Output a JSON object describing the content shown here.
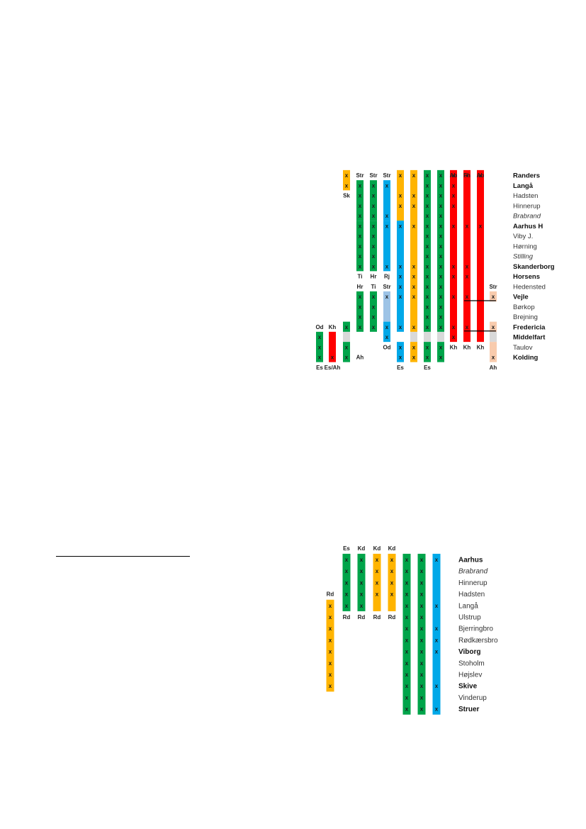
{
  "colors": {
    "green": "#00A44A",
    "yellow": "#FFB400",
    "blue": "#00A8E8",
    "lightblue": "#9DC3E6",
    "red": "#FF0000",
    "peach": "#F8CBAD",
    "gray": "#D9D9D9"
  },
  "diagram1": {
    "stations": [
      {
        "name": "Randers",
        "style": "bold"
      },
      {
        "name": "Langå",
        "style": "bold"
      },
      {
        "name": "Hadsten",
        "style": "normal"
      },
      {
        "name": "Hinnerup",
        "style": "normal"
      },
      {
        "name": "Brabrand",
        "style": "italic"
      },
      {
        "name": "Aarhus H",
        "style": "bold"
      },
      {
        "name": "Viby J.",
        "style": "normal"
      },
      {
        "name": "Hørning",
        "style": "normal"
      },
      {
        "name": "Stilling",
        "style": "italic"
      },
      {
        "name": "Skanderborg",
        "style": "bold"
      },
      {
        "name": "Horsens",
        "style": "bold"
      },
      {
        "name": "Hedensted",
        "style": "normal"
      },
      {
        "name": "Vejle",
        "style": "bold"
      },
      {
        "name": "Børkop",
        "style": "normal"
      },
      {
        "name": "Brejning",
        "style": "normal"
      },
      {
        "name": "Fredericia",
        "style": "bold"
      },
      {
        "name": "Middelfart",
        "style": "bold"
      },
      {
        "name": "Taulov",
        "style": "normal"
      },
      {
        "name": "Kolding",
        "style": "bold"
      }
    ],
    "labels": [
      {
        "text": "Sk",
        "col": 2,
        "row": 2
      },
      {
        "text": "Str",
        "col": 3,
        "row": 0
      },
      {
        "text": "Str",
        "col": 4,
        "row": 0
      },
      {
        "text": "Str",
        "col": 5,
        "row": 0
      },
      {
        "text": "Ab",
        "col": 10,
        "row": 0
      },
      {
        "text": "Fh",
        "col": 11,
        "row": 0
      },
      {
        "text": "Ab",
        "col": 12,
        "row": 0
      },
      {
        "text": "Ti",
        "col": 3,
        "row": 10
      },
      {
        "text": "Hr",
        "col": 4,
        "row": 10
      },
      {
        "text": "Rj",
        "col": 5,
        "row": 10
      },
      {
        "text": "Hr",
        "col": 3,
        "row": 11
      },
      {
        "text": "Ti",
        "col": 4,
        "row": 11
      },
      {
        "text": "Str",
        "col": 5,
        "row": 11
      },
      {
        "text": "Str",
        "col": 13,
        "row": 11
      },
      {
        "text": "Od",
        "col": 0,
        "row": 15
      },
      {
        "text": "Kh",
        "col": 1,
        "row": 15
      },
      {
        "text": "Od",
        "col": 5,
        "row": 17
      },
      {
        "text": "Kh",
        "col": 10,
        "row": 17
      },
      {
        "text": "Kh",
        "col": 11,
        "row": 17
      },
      {
        "text": "Kh",
        "col": 12,
        "row": 17
      },
      {
        "text": "Ah",
        "col": 3,
        "row": 18
      },
      {
        "text": "Es",
        "col": 0,
        "row": 19
      },
      {
        "text": "Es/Ah",
        "col": 1,
        "row": 19
      },
      {
        "text": "Es",
        "col": 6,
        "row": 19
      },
      {
        "text": "Es",
        "col": 8,
        "row": 19
      },
      {
        "text": "Ah",
        "col": 13,
        "row": 19
      }
    ],
    "bars": [
      {
        "col": 2,
        "from": 0,
        "to": 1,
        "color": "yellow",
        "marks": [
          0,
          1
        ]
      },
      {
        "col": 3,
        "from": 1,
        "to": 4,
        "color": "green",
        "marks": [
          1,
          2,
          3,
          4
        ]
      },
      {
        "col": 3,
        "from": 5,
        "to": 9,
        "color": "green",
        "marks": [
          5,
          6,
          7,
          8,
          9
        ]
      },
      {
        "col": 4,
        "from": 1,
        "to": 4,
        "color": "green",
        "marks": [
          1,
          2,
          3,
          4
        ]
      },
      {
        "col": 4,
        "from": 5,
        "to": 9,
        "color": "green",
        "marks": [
          5,
          6,
          7,
          8,
          9
        ]
      },
      {
        "col": 5,
        "from": 1,
        "to": 4,
        "color": "blue",
        "marks": [
          1,
          4
        ]
      },
      {
        "col": 5,
        "from": 5,
        "to": 9,
        "color": "blue",
        "marks": [
          5,
          9
        ]
      },
      {
        "col": 6,
        "from": 0,
        "to": 4,
        "color": "yellow",
        "marks": [
          0,
          2,
          3
        ]
      },
      {
        "col": 6,
        "from": 5,
        "to": 15,
        "color": "blue",
        "marks": [
          5,
          9,
          10,
          11,
          12,
          15
        ]
      },
      {
        "col": 6,
        "from": 17,
        "to": 18,
        "color": "blue",
        "marks": [
          17,
          18
        ]
      },
      {
        "col": 7,
        "from": 0,
        "to": 15,
        "color": "yellow",
        "marks": [
          0,
          2,
          3,
          5,
          9,
          10,
          11,
          12,
          15
        ]
      },
      {
        "col": 7,
        "from": 17,
        "to": 18,
        "color": "yellow",
        "marks": [
          17,
          18
        ]
      },
      {
        "col": 8,
        "from": 0,
        "to": 15,
        "color": "green",
        "marks": [
          0,
          1,
          2,
          3,
          4,
          5,
          6,
          7,
          8,
          9,
          10,
          11,
          12,
          13,
          14,
          15
        ]
      },
      {
        "col": 8,
        "from": 17,
        "to": 18,
        "color": "green",
        "marks": [
          17,
          18
        ]
      },
      {
        "col": 9,
        "from": 0,
        "to": 15,
        "color": "green",
        "marks": [
          0,
          1,
          2,
          3,
          4,
          5,
          6,
          7,
          8,
          9,
          10,
          11,
          12,
          13,
          14,
          15
        ]
      },
      {
        "col": 9,
        "from": 17,
        "to": 18,
        "color": "green",
        "marks": [
          17,
          18
        ]
      },
      {
        "col": 10,
        "from": 0,
        "to": 16,
        "color": "red",
        "marks": [
          0,
          1,
          2,
          3,
          5,
          9,
          10,
          12,
          15,
          16
        ]
      },
      {
        "col": 11,
        "from": 0,
        "to": 16,
        "color": "red",
        "marks": [
          0,
          5,
          9,
          10,
          12,
          15
        ]
      },
      {
        "col": 12,
        "from": 0,
        "to": 16,
        "color": "red",
        "marks": [
          0,
          5
        ]
      },
      {
        "col": 3,
        "from": 12,
        "to": 15,
        "color": "green",
        "marks": [
          12,
          13,
          14,
          15
        ]
      },
      {
        "col": 4,
        "from": 12,
        "to": 15,
        "color": "green",
        "marks": [
          12,
          13,
          14,
          15
        ]
      },
      {
        "col": 5,
        "from": 12,
        "to": 14,
        "color": "lightblue",
        "marks": [
          12
        ]
      },
      {
        "col": 5,
        "from": 15,
        "to": 16,
        "color": "blue",
        "marks": [
          15,
          16
        ]
      },
      {
        "col": 13,
        "from": 12,
        "to": 12,
        "color": "peach",
        "marks": [
          12
        ]
      },
      {
        "col": 13,
        "from": 15,
        "to": 15,
        "color": "peach",
        "marks": [
          15
        ]
      },
      {
        "col": 13,
        "from": 17,
        "to": 18,
        "color": "peach",
        "marks": [
          18
        ]
      },
      {
        "col": 0,
        "from": 16,
        "to": 18,
        "color": "green",
        "marks": [
          16,
          17,
          18
        ]
      },
      {
        "col": 1,
        "from": 16,
        "to": 18,
        "color": "red",
        "marks": [
          18
        ]
      },
      {
        "col": 2,
        "from": 15,
        "to": 15,
        "color": "green",
        "marks": [
          15
        ]
      },
      {
        "col": 2,
        "from": 17,
        "to": 18,
        "color": "green",
        "marks": [
          17,
          18
        ]
      }
    ],
    "gaps": [
      {
        "col": 2,
        "from": 16,
        "to": 16
      },
      {
        "col": 7,
        "from": 16,
        "to": 16
      },
      {
        "col": 8,
        "from": 16,
        "to": 16
      },
      {
        "col": 9,
        "from": 16,
        "to": 16
      },
      {
        "col": 13,
        "from": 16,
        "to": 16
      }
    ]
  },
  "diagram2": {
    "stations": [
      {
        "name": "Aarhus",
        "style": "bold"
      },
      {
        "name": "Brabrand",
        "style": "italic"
      },
      {
        "name": "Hinnerup",
        "style": "normal"
      },
      {
        "name": "Hadsten",
        "style": "normal"
      },
      {
        "name": "Langå",
        "style": "normal"
      },
      {
        "name": "Ulstrup",
        "style": "normal"
      },
      {
        "name": "Bjerringbro",
        "style": "normal"
      },
      {
        "name": "Rødkærsbro",
        "style": "normal"
      },
      {
        "name": "Viborg",
        "style": "bold"
      },
      {
        "name": "Stoholm",
        "style": "normal"
      },
      {
        "name": "Højslev",
        "style": "normal"
      },
      {
        "name": "Skive",
        "style": "bold"
      },
      {
        "name": "Vinderup",
        "style": "normal"
      },
      {
        "name": "Struer",
        "style": "bold"
      }
    ],
    "labels": [
      {
        "text": "Es",
        "col": 1,
        "row": -1
      },
      {
        "text": "Kd",
        "col": 2,
        "row": -1
      },
      {
        "text": "Kd",
        "col": 3,
        "row": -1
      },
      {
        "text": "Kd",
        "col": 4,
        "row": -1
      },
      {
        "text": "Rd",
        "col": 0,
        "row": 3
      },
      {
        "text": "Rd",
        "col": 1,
        "row": 5
      },
      {
        "text": "Rd",
        "col": 2,
        "row": 5
      },
      {
        "text": "Rd",
        "col": 3,
        "row": 5
      },
      {
        "text": "Rd",
        "col": 4,
        "row": 5
      }
    ],
    "bars": [
      {
        "col": 0,
        "from": 4,
        "to": 11,
        "color": "yellow",
        "marks": [
          4,
          5,
          6,
          7,
          8,
          9,
          10,
          11
        ]
      },
      {
        "col": 1,
        "from": 0,
        "to": 4,
        "color": "green",
        "marks": [
          0,
          1,
          2,
          3,
          4
        ]
      },
      {
        "col": 2,
        "from": 0,
        "to": 4,
        "color": "green",
        "marks": [
          0,
          1,
          2,
          3,
          4
        ]
      },
      {
        "col": 3,
        "from": 0,
        "to": 4,
        "color": "yellow",
        "marks": [
          0,
          1,
          2,
          3
        ]
      },
      {
        "col": 4,
        "from": 0,
        "to": 4,
        "color": "yellow",
        "marks": [
          0,
          1,
          2,
          3
        ]
      },
      {
        "col": 5,
        "from": 0,
        "to": 13,
        "color": "green",
        "marks": [
          0,
          1,
          2,
          3,
          4,
          5,
          6,
          7,
          8,
          9,
          10,
          11,
          12,
          13
        ]
      },
      {
        "col": 6,
        "from": 0,
        "to": 13,
        "color": "green",
        "marks": [
          0,
          1,
          2,
          3,
          4,
          5,
          6,
          7,
          8,
          9,
          10,
          11,
          12,
          13
        ]
      },
      {
        "col": 7,
        "from": 0,
        "to": 13,
        "color": "blue",
        "marks": [
          0,
          4,
          6,
          7,
          8,
          11,
          13
        ]
      }
    ]
  }
}
